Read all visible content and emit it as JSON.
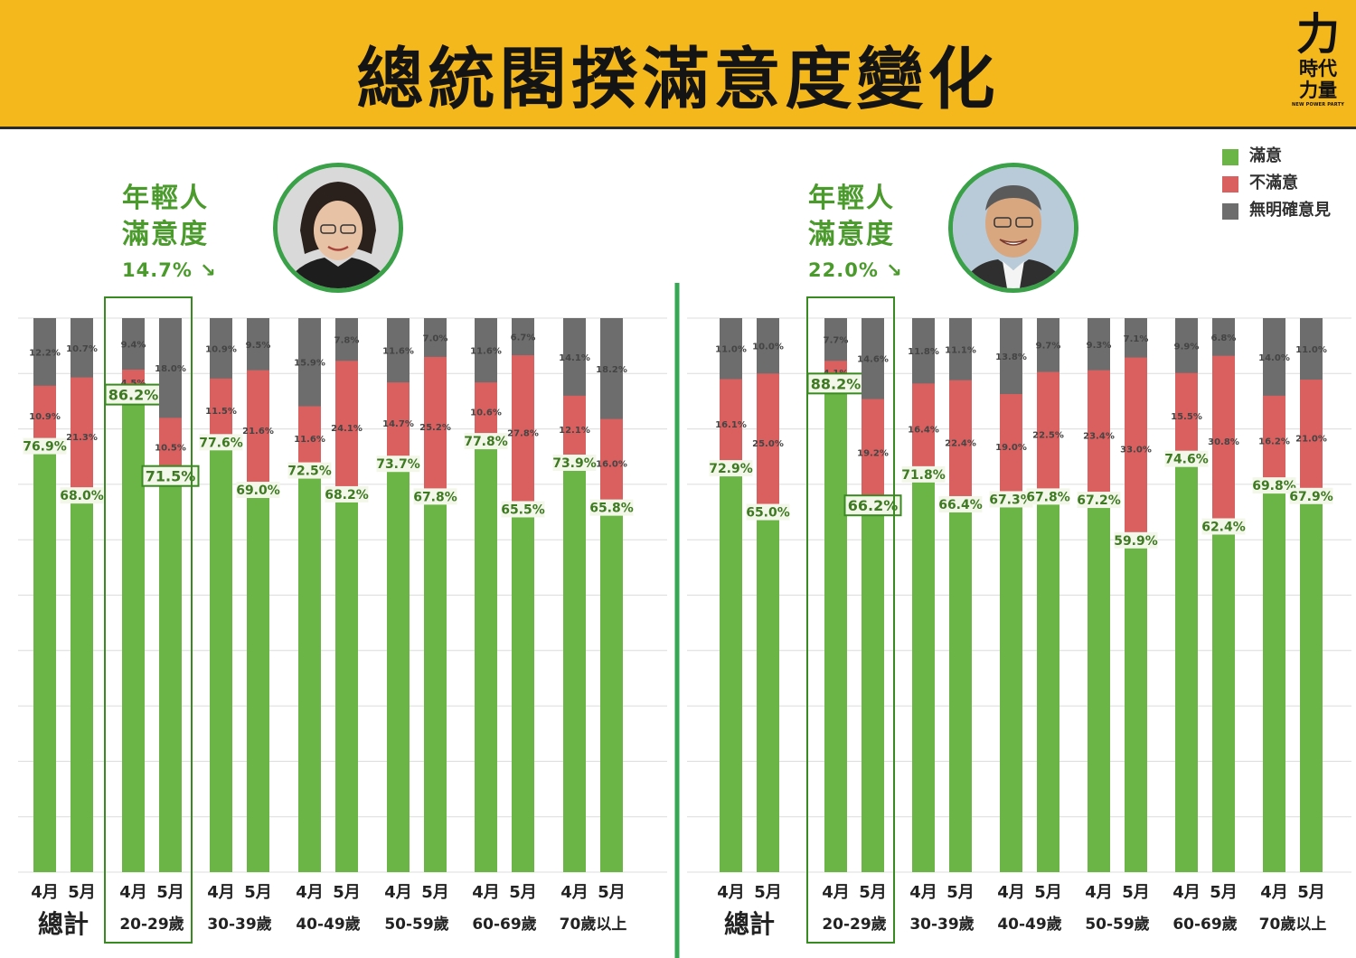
{
  "header": {
    "title": "總統閣揆滿意度變化",
    "logo_mark": "力",
    "logo_line1": "時代",
    "logo_line2": "力量",
    "logo_sub": "NEW POWER PARTY"
  },
  "colors": {
    "header_bg": "#f5b81c",
    "satisfied": "#6ab545",
    "dissatisfied": "#d9605f",
    "no_opinion": "#6d6d6d",
    "accent_green": "#4a9a2c",
    "divider": "#34a853"
  },
  "legend": [
    {
      "label": "滿意",
      "color": "#6ab545"
    },
    {
      "label": "不滿意",
      "color": "#d9605f"
    },
    {
      "label": "無明確意見",
      "color": "#6d6d6d"
    }
  ],
  "young_left": {
    "title_line1": "年輕人",
    "title_line2": "滿意度",
    "value": "14.7%",
    "arrow": "↘"
  },
  "young_right": {
    "title_line1": "年輕人",
    "title_line2": "滿意度",
    "value": "22.0%",
    "arrow": "↘"
  },
  "portraits": [
    "president-portrait",
    "premier-portrait"
  ],
  "chart_data": [
    {
      "type": "bar",
      "stacked": true,
      "series_names": [
        "滿意",
        "不滿意",
        "無明確意見"
      ],
      "months": [
        "4月",
        "5月"
      ],
      "groups": [
        {
          "label": "總計",
          "bars": [
            {
              "sat": 76.9,
              "dis": 10.9,
              "none": 12.2
            },
            {
              "sat": 68.0,
              "dis": 21.3,
              "none": 10.7
            }
          ]
        },
        {
          "label": "20-29歲",
          "highlight": true,
          "bars": [
            {
              "sat": 86.2,
              "dis": 4.5,
              "none": 9.4
            },
            {
              "sat": 71.5,
              "dis": 10.5,
              "none": 18.0
            }
          ]
        },
        {
          "label": "30-39歲",
          "bars": [
            {
              "sat": 77.6,
              "dis": 11.5,
              "none": 10.9
            },
            {
              "sat": 69.0,
              "dis": 21.6,
              "none": 9.5
            }
          ]
        },
        {
          "label": "40-49歲",
          "bars": [
            {
              "sat": 72.5,
              "dis": 11.6,
              "none": 15.9
            },
            {
              "sat": 68.2,
              "dis": 24.1,
              "none": 7.8
            }
          ]
        },
        {
          "label": "50-59歲",
          "bars": [
            {
              "sat": 73.7,
              "dis": 14.7,
              "none": 11.6
            },
            {
              "sat": 67.8,
              "dis": 25.2,
              "none": 7.0
            }
          ]
        },
        {
          "label": "60-69歲",
          "bars": [
            {
              "sat": 77.8,
              "dis": 10.6,
              "none": 11.6
            },
            {
              "sat": 65.5,
              "dis": 27.8,
              "none": 6.7
            }
          ]
        },
        {
          "label": "70歲以上",
          "bars": [
            {
              "sat": 73.9,
              "dis": 12.1,
              "none": 14.1
            },
            {
              "sat": 65.8,
              "dis": 16.0,
              "none": 18.2
            }
          ]
        }
      ],
      "ylim": [
        0,
        100
      ]
    },
    {
      "type": "bar",
      "stacked": true,
      "series_names": [
        "滿意",
        "不滿意",
        "無明確意見"
      ],
      "months": [
        "4月",
        "5月"
      ],
      "groups": [
        {
          "label": "總計",
          "bars": [
            {
              "sat": 72.9,
              "dis": 16.1,
              "none": 11.0
            },
            {
              "sat": 65.0,
              "dis": 25.0,
              "none": 10.0
            }
          ]
        },
        {
          "label": "20-29歲",
          "highlight": true,
          "bars": [
            {
              "sat": 88.2,
              "dis": 4.1,
              "none": 7.7
            },
            {
              "sat": 66.2,
              "dis": 19.2,
              "none": 14.6
            }
          ]
        },
        {
          "label": "30-39歲",
          "bars": [
            {
              "sat": 71.8,
              "dis": 16.4,
              "none": 11.8
            },
            {
              "sat": 66.4,
              "dis": 22.4,
              "none": 11.1
            }
          ]
        },
        {
          "label": "40-49歲",
          "bars": [
            {
              "sat": 67.3,
              "dis": 19.0,
              "none": 13.8
            },
            {
              "sat": 67.8,
              "dis": 22.5,
              "none": 9.7
            }
          ]
        },
        {
          "label": "50-59歲",
          "bars": [
            {
              "sat": 67.2,
              "dis": 23.4,
              "none": 9.3
            },
            {
              "sat": 59.9,
              "dis": 33.0,
              "none": 7.1
            }
          ]
        },
        {
          "label": "60-69歲",
          "bars": [
            {
              "sat": 74.6,
              "dis": 15.5,
              "none": 9.9
            },
            {
              "sat": 62.4,
              "dis": 30.8,
              "none": 6.8
            }
          ]
        },
        {
          "label": "70歲以上",
          "bars": [
            {
              "sat": 69.8,
              "dis": 16.2,
              "none": 14.0
            },
            {
              "sat": 67.9,
              "dis": 21.0,
              "none": 11.0
            }
          ]
        }
      ],
      "ylim": [
        0,
        100
      ]
    }
  ]
}
